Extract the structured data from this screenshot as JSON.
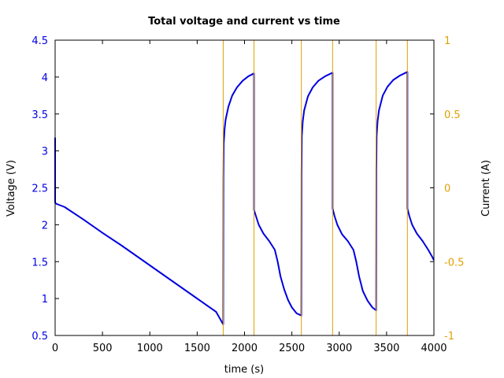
{
  "chart_data": {
    "type": "line",
    "title": "Total voltage and current vs time",
    "xlabel": "time (s)",
    "ylabel": "Voltage (V)",
    "y2label": "Current (A)",
    "xlim": [
      0,
      4000
    ],
    "ylim": [
      0.5,
      4.5
    ],
    "y2lim": [
      -1,
      1
    ],
    "x_ticks": [
      "0",
      "500",
      "1000",
      "1500",
      "2000",
      "2500",
      "3000",
      "3500",
      "4000"
    ],
    "y_ticks": [
      "0.5",
      "1",
      "1.5",
      "2",
      "2.5",
      "3",
      "3.5",
      "4",
      "4.5"
    ],
    "y2_ticks": [
      "-1",
      "-0.5",
      "0",
      "0.5",
      "1"
    ],
    "grid": false,
    "colors": {
      "voltage": "#0000e0",
      "current": "#e0a000",
      "axis_left": "#0000e0",
      "axis_right": "#e0a000"
    },
    "series": [
      {
        "axis": "left",
        "x": [
          0,
          0,
          0,
          5,
          20,
          100,
          300,
          500,
          700,
          900,
          1100,
          1300,
          1500,
          1700,
          1775,
          1775,
          1777,
          1780,
          1790,
          1800,
          1830,
          1870,
          1920,
          1980,
          2040,
          2100,
          2100,
          2120,
          2150,
          2200,
          2260,
          2320,
          2350,
          2380,
          2420,
          2460,
          2500,
          2550,
          2600,
          2600,
          2602,
          2605,
          2615,
          2630,
          2670,
          2720,
          2780,
          2850,
          2930,
          2930,
          2950,
          2980,
          3030,
          3090,
          3150,
          3180,
          3210,
          3250,
          3300,
          3350,
          3390,
          3390,
          3392,
          3395,
          3405,
          3420,
          3460,
          3510,
          3570,
          3640,
          3720,
          3720,
          3740,
          3770,
          3820,
          3880,
          3940,
          3980,
          4000
        ],
        "y": [
          3.18,
          2.5,
          2.3,
          2.29,
          2.28,
          2.24,
          2.07,
          1.89,
          1.72,
          1.54,
          1.36,
          1.18,
          1.0,
          0.82,
          0.65,
          0.65,
          2.6,
          3.1,
          3.3,
          3.42,
          3.6,
          3.75,
          3.86,
          3.95,
          4.01,
          4.05,
          2.2,
          2.12,
          2.0,
          1.88,
          1.78,
          1.66,
          1.5,
          1.3,
          1.12,
          0.98,
          0.88,
          0.8,
          0.77,
          0.77,
          2.7,
          3.2,
          3.4,
          3.55,
          3.74,
          3.86,
          3.95,
          4.01,
          4.06,
          2.22,
          2.12,
          2.0,
          1.87,
          1.78,
          1.66,
          1.5,
          1.3,
          1.1,
          0.97,
          0.88,
          0.84,
          0.84,
          2.75,
          3.2,
          3.4,
          3.55,
          3.75,
          3.87,
          3.96,
          4.02,
          4.07,
          2.22,
          2.12,
          2.0,
          1.88,
          1.78,
          1.66,
          1.57,
          1.52
        ]
      },
      {
        "axis": "right",
        "x": [
          1775,
          1775,
          2100,
          2100,
          2600,
          2600,
          2930,
          2930,
          3390,
          3390,
          3720,
          3720,
          4000
        ],
        "y": [
          -1,
          1,
          1,
          -1,
          -1,
          1,
          1,
          -1,
          -1,
          1,
          1,
          -1,
          -1
        ]
      }
    ]
  }
}
